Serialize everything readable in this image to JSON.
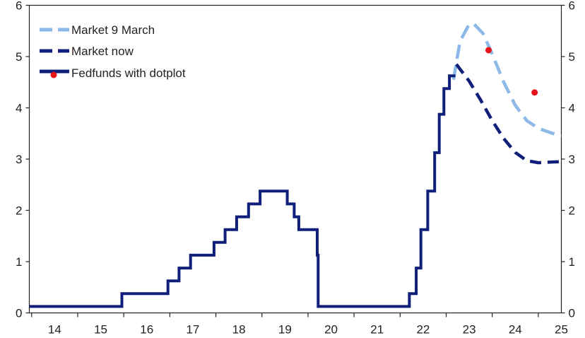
{
  "chart_data": {
    "type": "line",
    "xlim": [
      13.95,
      25.5
    ],
    "ylim": [
      0,
      6
    ],
    "x_ticks": [
      {
        "label": "14",
        "at": 14.5
      },
      {
        "label": "15",
        "at": 15.5
      },
      {
        "label": "16",
        "at": 16.5
      },
      {
        "label": "17",
        "at": 17.5
      },
      {
        "label": "18",
        "at": 18.5
      },
      {
        "label": "19",
        "at": 19.5
      },
      {
        "label": "20",
        "at": 20.5
      },
      {
        "label": "21",
        "at": 21.5
      },
      {
        "label": "22",
        "at": 22.5
      },
      {
        "label": "23",
        "at": 23.5
      },
      {
        "label": "24",
        "at": 24.5
      },
      {
        "label": "25",
        "at": 25.5
      }
    ],
    "y_ticks": [
      0,
      1,
      2,
      3,
      4,
      5,
      6
    ],
    "grid": false,
    "legend_position": "top-left",
    "series": [
      {
        "name": "Market 9 March",
        "style": "dashed",
        "color": "#8db9e8",
        "points": [
          [
            23.16,
            4.55
          ],
          [
            23.3,
            5.3
          ],
          [
            23.5,
            5.63
          ],
          [
            23.6,
            5.64
          ],
          [
            23.8,
            5.45
          ],
          [
            24.0,
            5.05
          ],
          [
            24.25,
            4.5
          ],
          [
            24.5,
            4.05
          ],
          [
            24.75,
            3.75
          ],
          [
            25.0,
            3.6
          ],
          [
            25.25,
            3.52
          ],
          [
            25.5,
            3.45
          ]
        ]
      },
      {
        "name": "Market now",
        "style": "dashed",
        "color": "#0f1f7a",
        "points": [
          [
            23.22,
            4.85
          ],
          [
            23.5,
            4.52
          ],
          [
            23.75,
            4.15
          ],
          [
            24.0,
            3.75
          ],
          [
            24.25,
            3.4
          ],
          [
            24.5,
            3.13
          ],
          [
            24.75,
            2.97
          ],
          [
            25.0,
            2.93
          ],
          [
            25.25,
            2.94
          ],
          [
            25.5,
            2.95
          ]
        ]
      },
      {
        "name": "Fedfunds with dotplot",
        "style": "solid",
        "color": "#0f1f7a",
        "step_points": [
          [
            13.95,
            0.125
          ],
          [
            15.96,
            0.375
          ],
          [
            16.96,
            0.625
          ],
          [
            17.2,
            0.875
          ],
          [
            17.45,
            1.125
          ],
          [
            17.96,
            1.375
          ],
          [
            18.2,
            1.625
          ],
          [
            18.45,
            1.875
          ],
          [
            18.71,
            2.125
          ],
          [
            18.96,
            2.375
          ],
          [
            19.55,
            2.125
          ],
          [
            19.7,
            1.875
          ],
          [
            19.8,
            1.625
          ],
          [
            20.2,
            1.125
          ],
          [
            20.22,
            0.125
          ],
          [
            22.2,
            0.375
          ],
          [
            22.35,
            0.875
          ],
          [
            22.45,
            1.625
          ],
          [
            22.6,
            2.375
          ],
          [
            22.75,
            3.125
          ],
          [
            22.85,
            3.875
          ],
          [
            22.95,
            4.375
          ],
          [
            23.07,
            4.625
          ],
          [
            23.2,
            4.625
          ]
        ]
      },
      {
        "name": "Fedfunds with dotplot",
        "type": "scatter",
        "color": "#e8141c",
        "points": [
          [
            23.92,
            5.125
          ],
          [
            24.92,
            4.3
          ]
        ]
      }
    ]
  }
}
